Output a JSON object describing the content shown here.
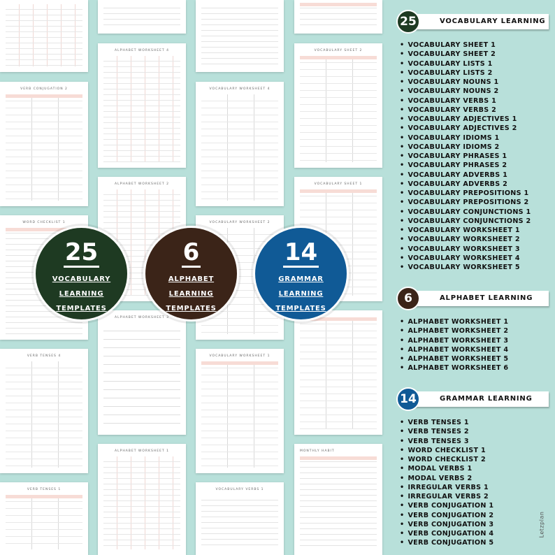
{
  "sheets": {
    "s_verb_conjugation_2": "VERB CONJUGATION 2",
    "s_word_checklist_1": "WORD CHECKLIST 1",
    "s_verb_tenses_4": "VERB TENSES 4",
    "s_verb_tenses_1": "VERB TENSES 1",
    "s_alphabet_worksheet_4": "ALPHABET WORKSHEET 4",
    "s_alphabet_worksheet_2": "ALPHABET WORKSHEET 2",
    "s_alphabet_worksheet_3": "ALPHABET WORKSHEET 3",
    "s_alphabet_worksheet_1": "ALPHABET WORKSHEET 1",
    "s_vocabulary_worksheet_4": "VOCABULARY WORKSHEET 4",
    "s_vocabulary_worksheet_2": "VOCABULARY WORKSHEET 2",
    "s_vocabulary_worksheet_1": "VOCABULARY WORKSHEET 1",
    "s_vocabulary_verbs_1": "VOCABULARY VERBS 1",
    "s_vocabulary_sheet_2": "VOCABULARY SHEET 2",
    "s_vocabulary_sheet_1": "VOCABULARY SHEET 1",
    "s_monthly_habit": "MONTHLY HABIT"
  },
  "badges": {
    "vocab": {
      "number": "25",
      "line1": "VOCABULARY",
      "line2": "LEARNING",
      "line3": "TEMPLATES",
      "color": "#1e3a22"
    },
    "alphabet": {
      "number": "6",
      "line1": "ALPHABET",
      "line2": "LEARNING",
      "line3": "TEMPLATES",
      "color": "#3b2418"
    },
    "grammar": {
      "number": "14",
      "line1": "GRAMMAR",
      "line2": "LEARNING",
      "line3": "TEMPLATES",
      "color": "#105a96"
    }
  },
  "sections": {
    "vocab": {
      "count": "25",
      "title": "VOCABULARY LEARNING",
      "color": "#1e3a22",
      "items": [
        "VOCABULARY SHEET 1",
        "VOCABULARY SHEET 2",
        "VOCABULARY LISTS 1",
        "VOCABULARY LISTS 2",
        "VOCABULARY NOUNS 1",
        "VOCABULARY NOUNS 2",
        "VOCABULARY VERBS 1",
        "VOCABULARY VERBS 2",
        "VOCABULARY ADJECTIVES 1",
        "VOCABULARY ADJECTIVES 2",
        "VOCABULARY IDIOMS 1",
        "VOCABULARY IDIOMS 2",
        "VOCABULARY PHRASES 1",
        "VOCABULARY PHRASES 2",
        "VOCABULARY ADVERBS 1",
        "VOCABULARY ADVERBS 2",
        "VOCABULARY PREPOSITIONS 1",
        "VOCABULARY PREPOSITIONS 2",
        "VOCABULARY CONJUNCTIONS 1",
        "VOCABULARY CONJUNCTIONS 2",
        "VOCABULARY WORKSHEET 1",
        "VOCABULARY WORKSHEET 2",
        "VOCABULARY WORKSHEET 3",
        "VOCABULARY WORKSHEET 4",
        "VOCABULARY WORKSHEET 5"
      ]
    },
    "alphabet": {
      "count": "6",
      "title": "ALPHABET LEARNING",
      "color": "#3b2418",
      "items": [
        "ALPHABET WORKSHEET 1",
        "ALPHABET WORKSHEET 2",
        "ALPHABET WORKSHEET 3",
        "ALPHABET WORKSHEET 4",
        "ALPHABET WORKSHEET 5",
        "ALPHABET WORKSHEET 6"
      ]
    },
    "grammar": {
      "count": "14",
      "title": "GRAMMAR LEARNING",
      "color": "#105a96",
      "items": [
        "VERB TENSES 1",
        "VERB TENSES 2",
        "VERB TENSES 3",
        "WORD CHECKLIST 1",
        "WORD CHECKLIST 2",
        "MODAL VERBS 1",
        "MODAL VERBS 2",
        "IRREGULAR VERBS 1",
        "IRREGULAR VERBS 2",
        "VERB CONJUGATION 1",
        "VERB CONJUGATION 2",
        "VERB CONJUGATION 3",
        "VERB CONJUGATION 4",
        "VERB CONJUGATION 5"
      ]
    }
  },
  "brand": "Letzplan"
}
